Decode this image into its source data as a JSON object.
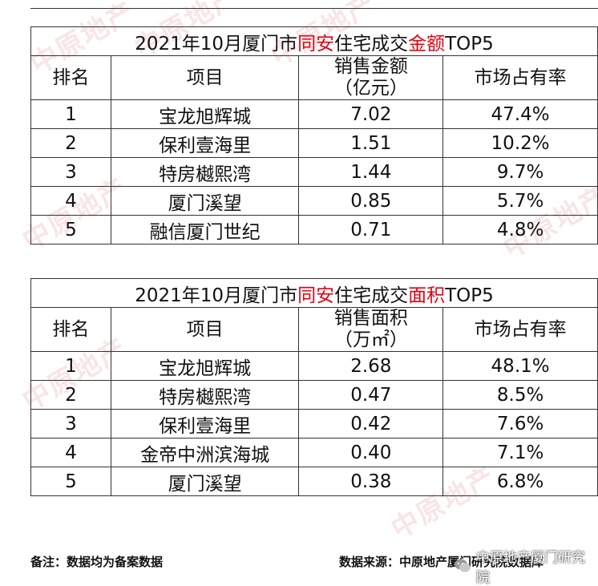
{
  "table1": {
    "title_pre": "2021年10月厦门市",
    "title_red1": "同安",
    "title_mid": "住宅成交",
    "title_red2": "金额",
    "title_post": "TOP5",
    "headers": [
      "排名",
      "项目",
      "销售金额",
      "（亿元）",
      "市场占有率"
    ],
    "rows": [
      [
        "1",
        "宝龙旭辉城",
        "7.02",
        "47.4%"
      ],
      [
        "2",
        "保利壹海里",
        "1.51",
        "10.2%"
      ],
      [
        "3",
        "特房樾熙湾",
        "1.44",
        "9.7%"
      ],
      [
        "4",
        "厦门溪望",
        "0.85",
        "5.7%"
      ],
      [
        "5",
        "融信厦门世纪",
        "0.71",
        "4.8%"
      ]
    ]
  },
  "table2": {
    "title_pre": "2021年10月厦门市",
    "title_red1": "同安",
    "title_mid": "住宅成交",
    "title_red2": "面积",
    "title_post": "TOP5",
    "headers": [
      "排名",
      "项目",
      "销售面积",
      "（万㎡）",
      "市场占有率"
    ],
    "rows": [
      [
        "1",
        "宝龙旭辉城",
        "2.68",
        "48.1%"
      ],
      [
        "2",
        "特房樾熙湾",
        "0.47",
        "8.5%"
      ],
      [
        "3",
        "保利壹海里",
        "0.42",
        "7.6%"
      ],
      [
        "4",
        "金帝中洲滨海城",
        "0.40",
        "7.1%"
      ],
      [
        "5",
        "厦门溪望",
        "0.38",
        "6.8%"
      ]
    ]
  },
  "footer": {
    "note": "备注：数据均为备案数据",
    "source": "数据来源：中原地产厦门研究院数据库",
    "brand": "中原地产厦门研究院"
  },
  "watermark": "中原地产",
  "colors": {
    "accent_red": "#e60012",
    "watermark": "#f3d0d0"
  }
}
